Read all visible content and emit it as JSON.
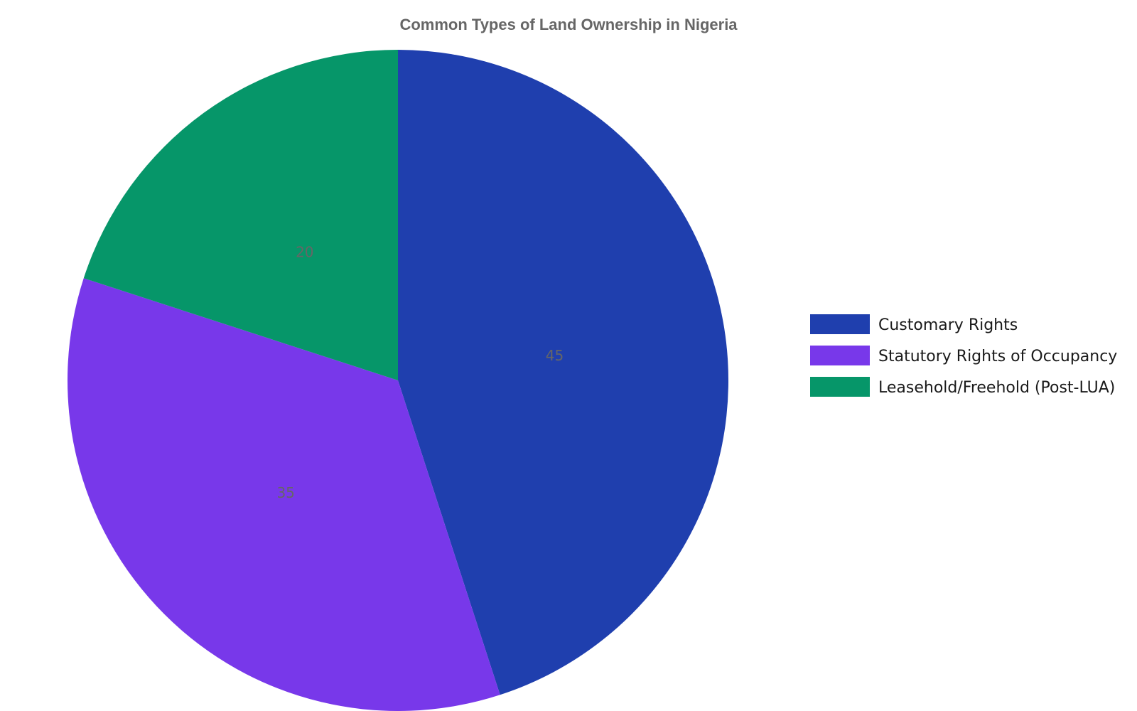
{
  "chart_data": {
    "type": "pie",
    "title": "Common Types of Land Ownership in Nigeria",
    "categories": [
      "Customary Rights",
      "Statutory Rights of Occupancy",
      "Leasehold/Freehold (Post-LUA)"
    ],
    "values": [
      45,
      35,
      20
    ],
    "colors": [
      "#1f3fae",
      "#7838ea",
      "#069669"
    ],
    "start_angle": "12 o'clock",
    "direction": "clockwise",
    "legend_position": "right",
    "data_labels": "value"
  }
}
